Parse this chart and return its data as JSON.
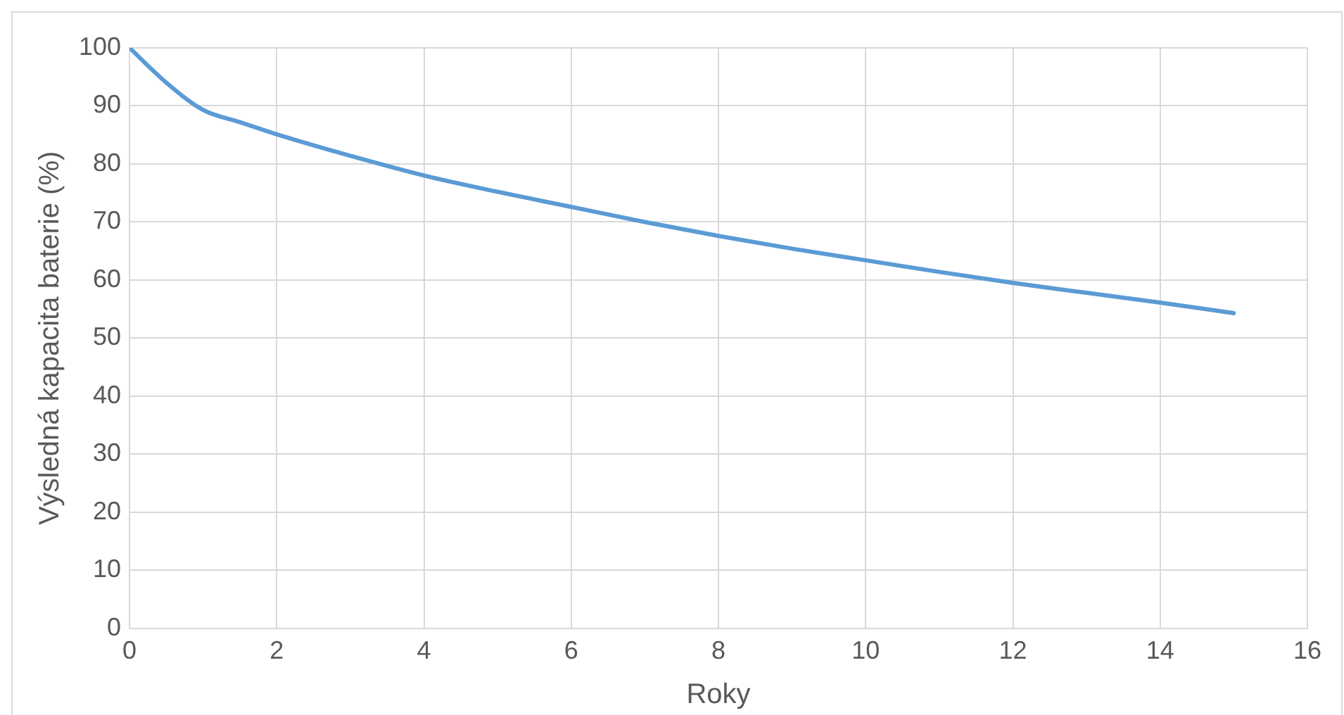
{
  "chart_data": {
    "type": "line",
    "xlabel": "Roky",
    "ylabel": "Výsledná kapacita baterie (%)",
    "x": [
      0,
      0.5,
      1,
      1.5,
      2,
      3,
      4,
      5,
      6,
      7,
      8,
      9,
      10,
      11,
      12,
      13,
      14,
      15
    ],
    "series": [
      {
        "color": "#5b9bd5",
        "values": [
          100,
          94,
          89.3,
          87.2,
          85.1,
          81.4,
          78,
          75.2,
          72.6,
          70,
          67.6,
          65.4,
          63.4,
          61.4,
          59.5,
          57.8,
          56.1,
          54.3
        ]
      }
    ],
    "xlim": [
      0,
      16
    ],
    "xticks": [
      0,
      2,
      4,
      6,
      8,
      10,
      12,
      14,
      16
    ],
    "ylim": [
      0,
      100
    ],
    "yticks": [
      0,
      10,
      20,
      30,
      40,
      50,
      60,
      70,
      80,
      90,
      100
    ],
    "grid": true,
    "legend": false,
    "marker": "none",
    "line_style": "solid"
  }
}
